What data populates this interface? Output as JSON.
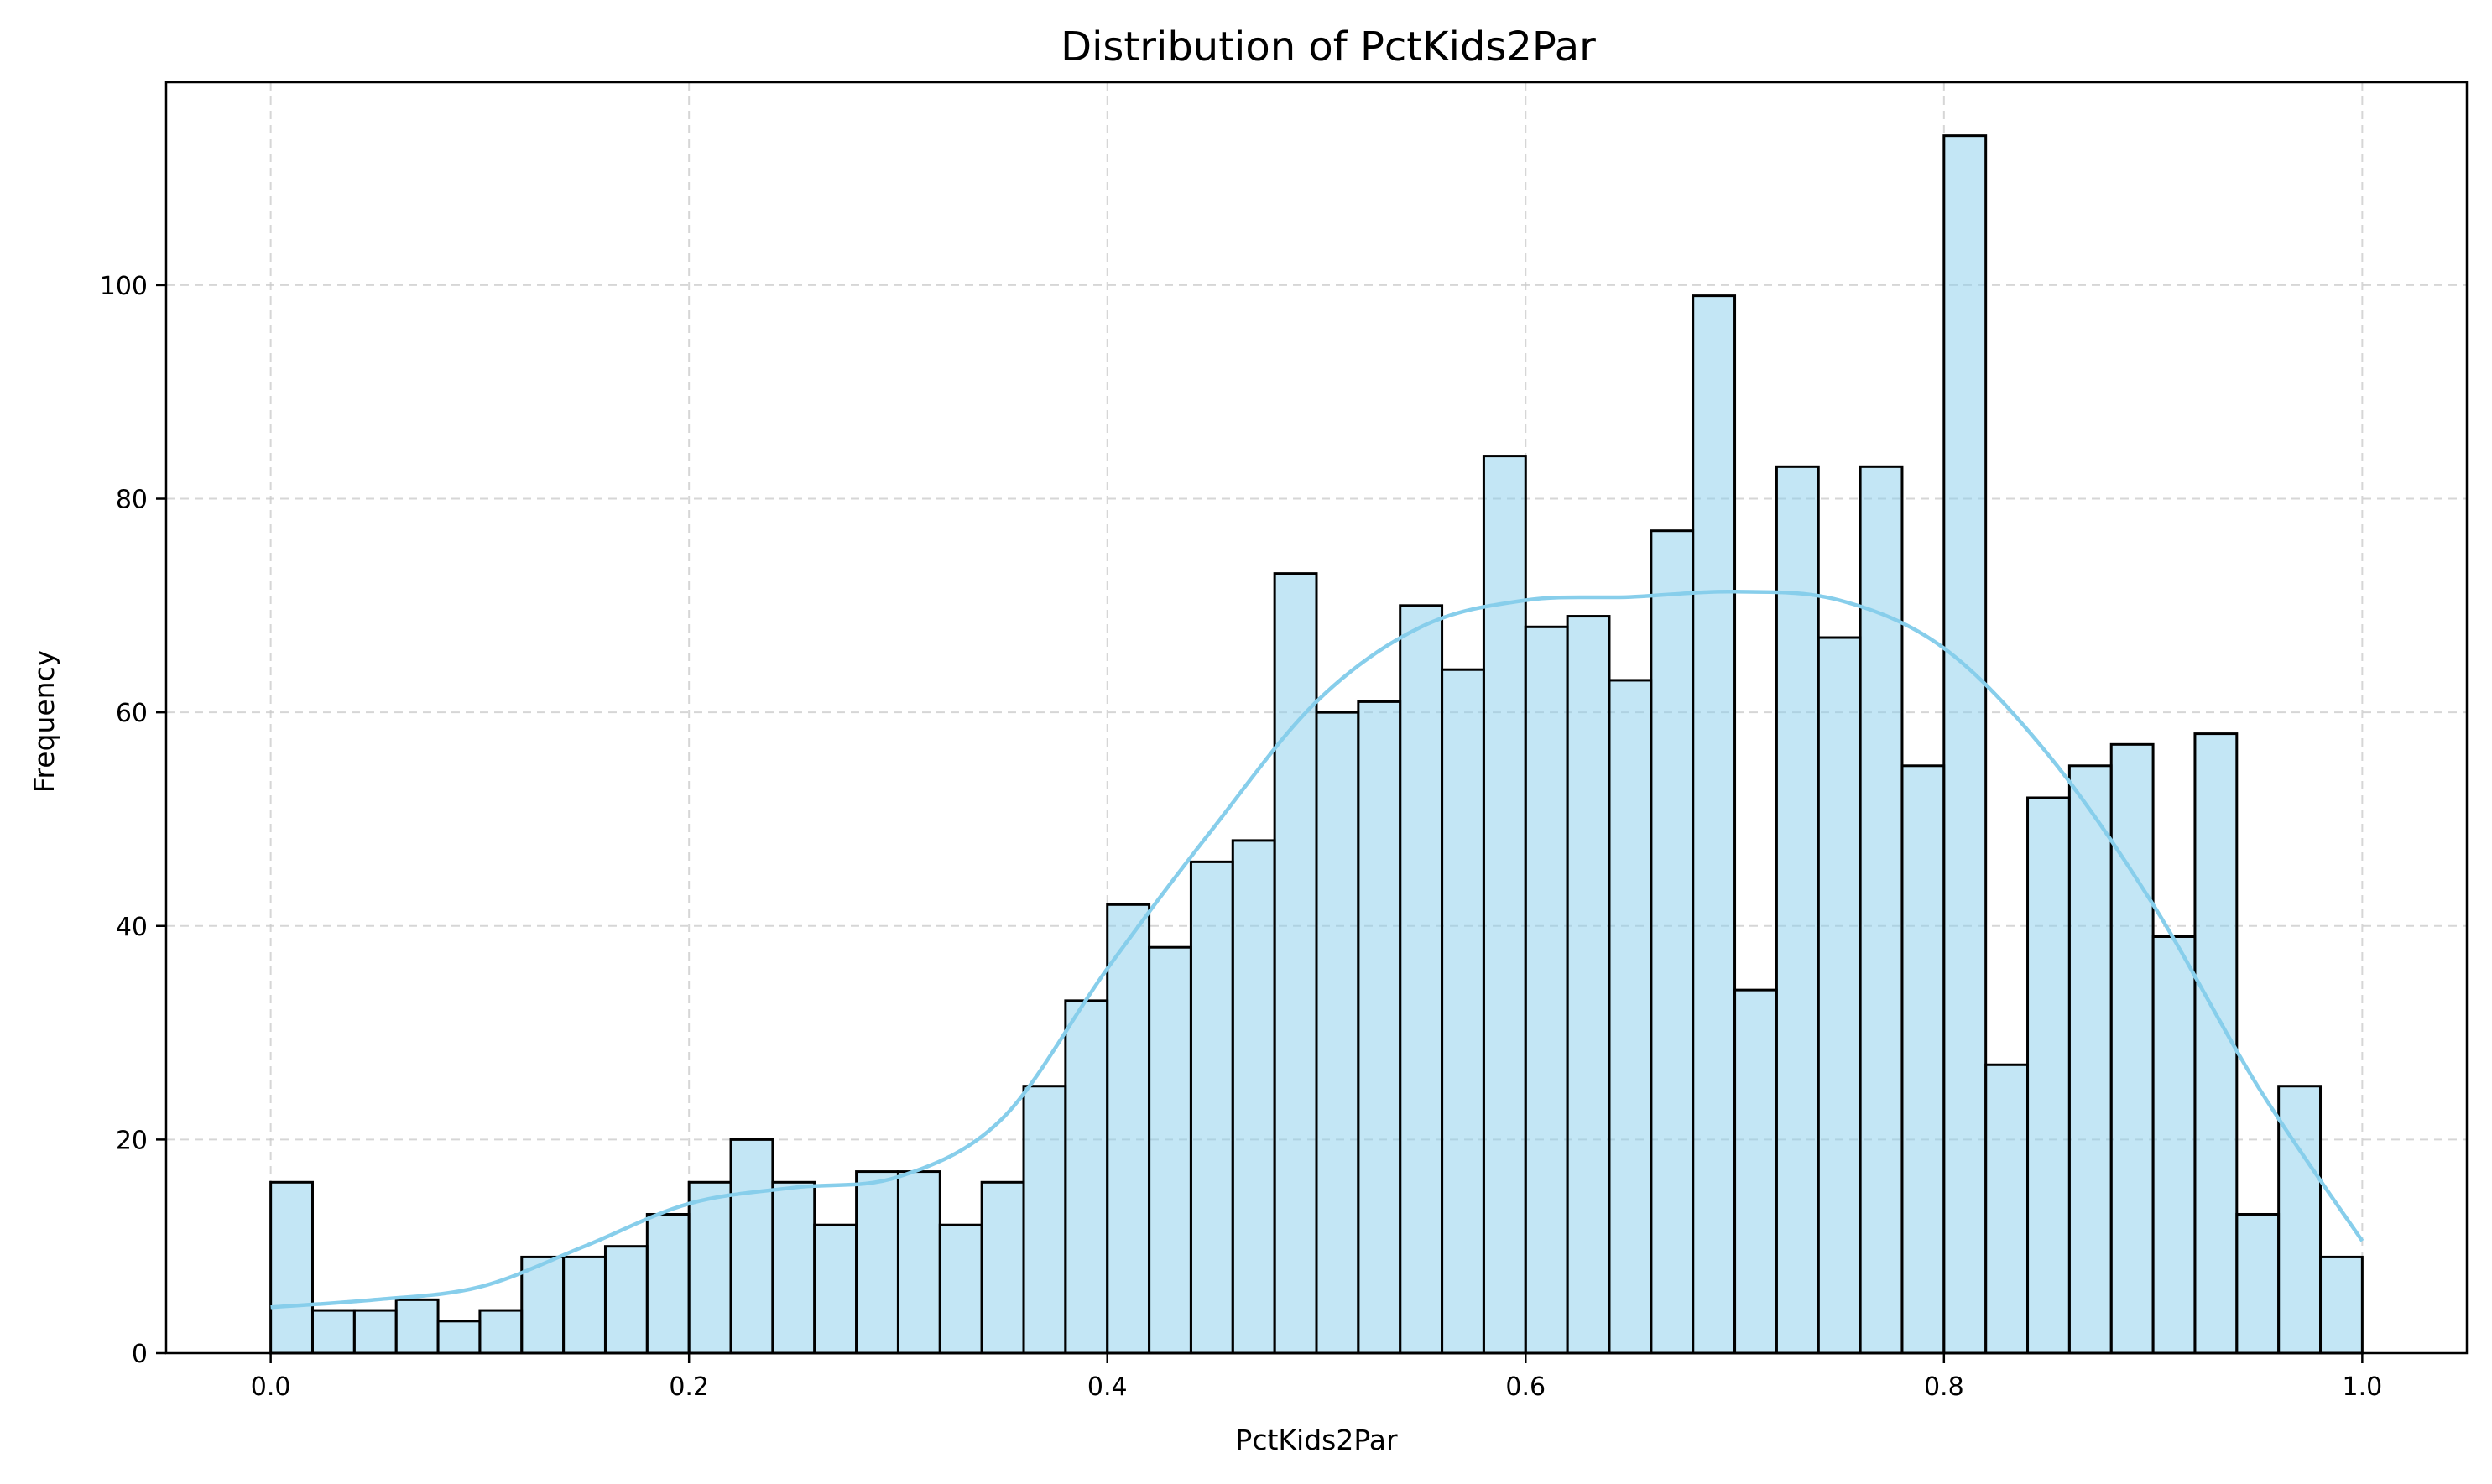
{
  "chart_data": {
    "type": "bar",
    "title": "Distribution of PctKids2Par",
    "xlabel": "PctKids2Par",
    "ylabel": "Frequency",
    "xlim": [
      -0.05,
      1.05
    ],
    "ylim": [
      0,
      119
    ],
    "x_ticks": [
      0.0,
      0.2,
      0.4,
      0.6,
      0.8,
      1.0
    ],
    "x_tick_labels": [
      "0.0",
      "0.2",
      "0.4",
      "0.6",
      "0.8",
      "1.0"
    ],
    "y_ticks": [
      0,
      20,
      40,
      60,
      80,
      100
    ],
    "y_tick_labels": [
      "0",
      "20",
      "40",
      "60",
      "80",
      "100"
    ],
    "grid": true,
    "bin_start": 0.0,
    "bin_width": 0.02,
    "values": [
      16,
      4,
      4,
      5,
      3,
      4,
      9,
      9,
      10,
      13,
      16,
      20,
      16,
      12,
      17,
      17,
      12,
      16,
      25,
      33,
      42,
      38,
      46,
      48,
      73,
      60,
      61,
      70,
      64,
      84,
      68,
      69,
      63,
      77,
      99,
      34,
      83,
      67,
      83,
      55,
      114,
      27,
      52,
      55,
      57,
      39,
      58,
      13,
      25,
      9
    ],
    "kde": {
      "x": [
        0.0,
        0.05,
        0.1,
        0.15,
        0.2,
        0.25,
        0.3,
        0.35,
        0.4,
        0.45,
        0.5,
        0.55,
        0.6,
        0.65,
        0.7,
        0.75,
        0.8,
        0.85,
        0.9,
        0.95,
        1.0
      ],
      "y": [
        4.3,
        5.0,
        6.2,
        10.0,
        14.0,
        15.5,
        16.5,
        22.0,
        36.0,
        49.0,
        61.0,
        68.0,
        70.5,
        70.8,
        71.3,
        70.5,
        66.0,
        56.0,
        42.0,
        25.0,
        10.5
      ]
    },
    "colors": {
      "bar_fill": "#87ceeb",
      "bar_edge": "#000000",
      "kde_line": "#87ceeb"
    }
  }
}
